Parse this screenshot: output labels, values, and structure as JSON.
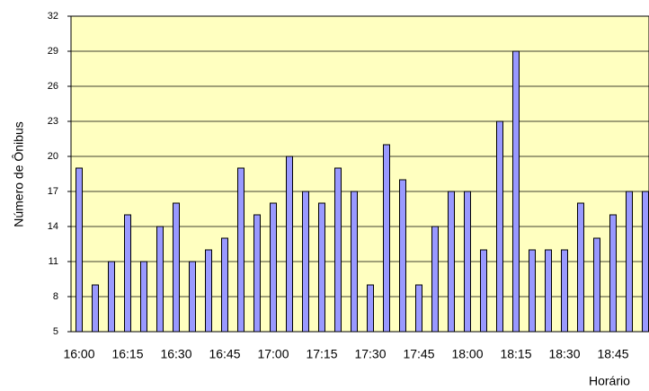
{
  "chart_data": {
    "type": "bar",
    "categories": [
      "16:00",
      null,
      null,
      "16:15",
      null,
      null,
      "16:30",
      null,
      null,
      "16:45",
      null,
      null,
      "17:00",
      null,
      null,
      "17:15",
      null,
      null,
      "17:30",
      null,
      null,
      "17:45",
      null,
      null,
      "18:00",
      null,
      null,
      "18:15",
      null,
      null,
      "18:30",
      null,
      null,
      "18:45",
      null,
      null
    ],
    "values": [
      19,
      9,
      11,
      15,
      11,
      14,
      16,
      11,
      12,
      13,
      19,
      15,
      16,
      20,
      17,
      16,
      19,
      17,
      9,
      21,
      18,
      9,
      14,
      17,
      17,
      12,
      23,
      29,
      12,
      12,
      12,
      16,
      13,
      15,
      17,
      17
    ],
    "color": "#9999ff",
    "background": "#ffffc0",
    "ylim": [
      5,
      32
    ],
    "yticks": [
      5,
      8,
      11,
      14,
      17,
      20,
      23,
      26,
      29,
      32
    ],
    "grid": true,
    "y_label": "Número de Ônibus",
    "x_label": "Horário"
  }
}
